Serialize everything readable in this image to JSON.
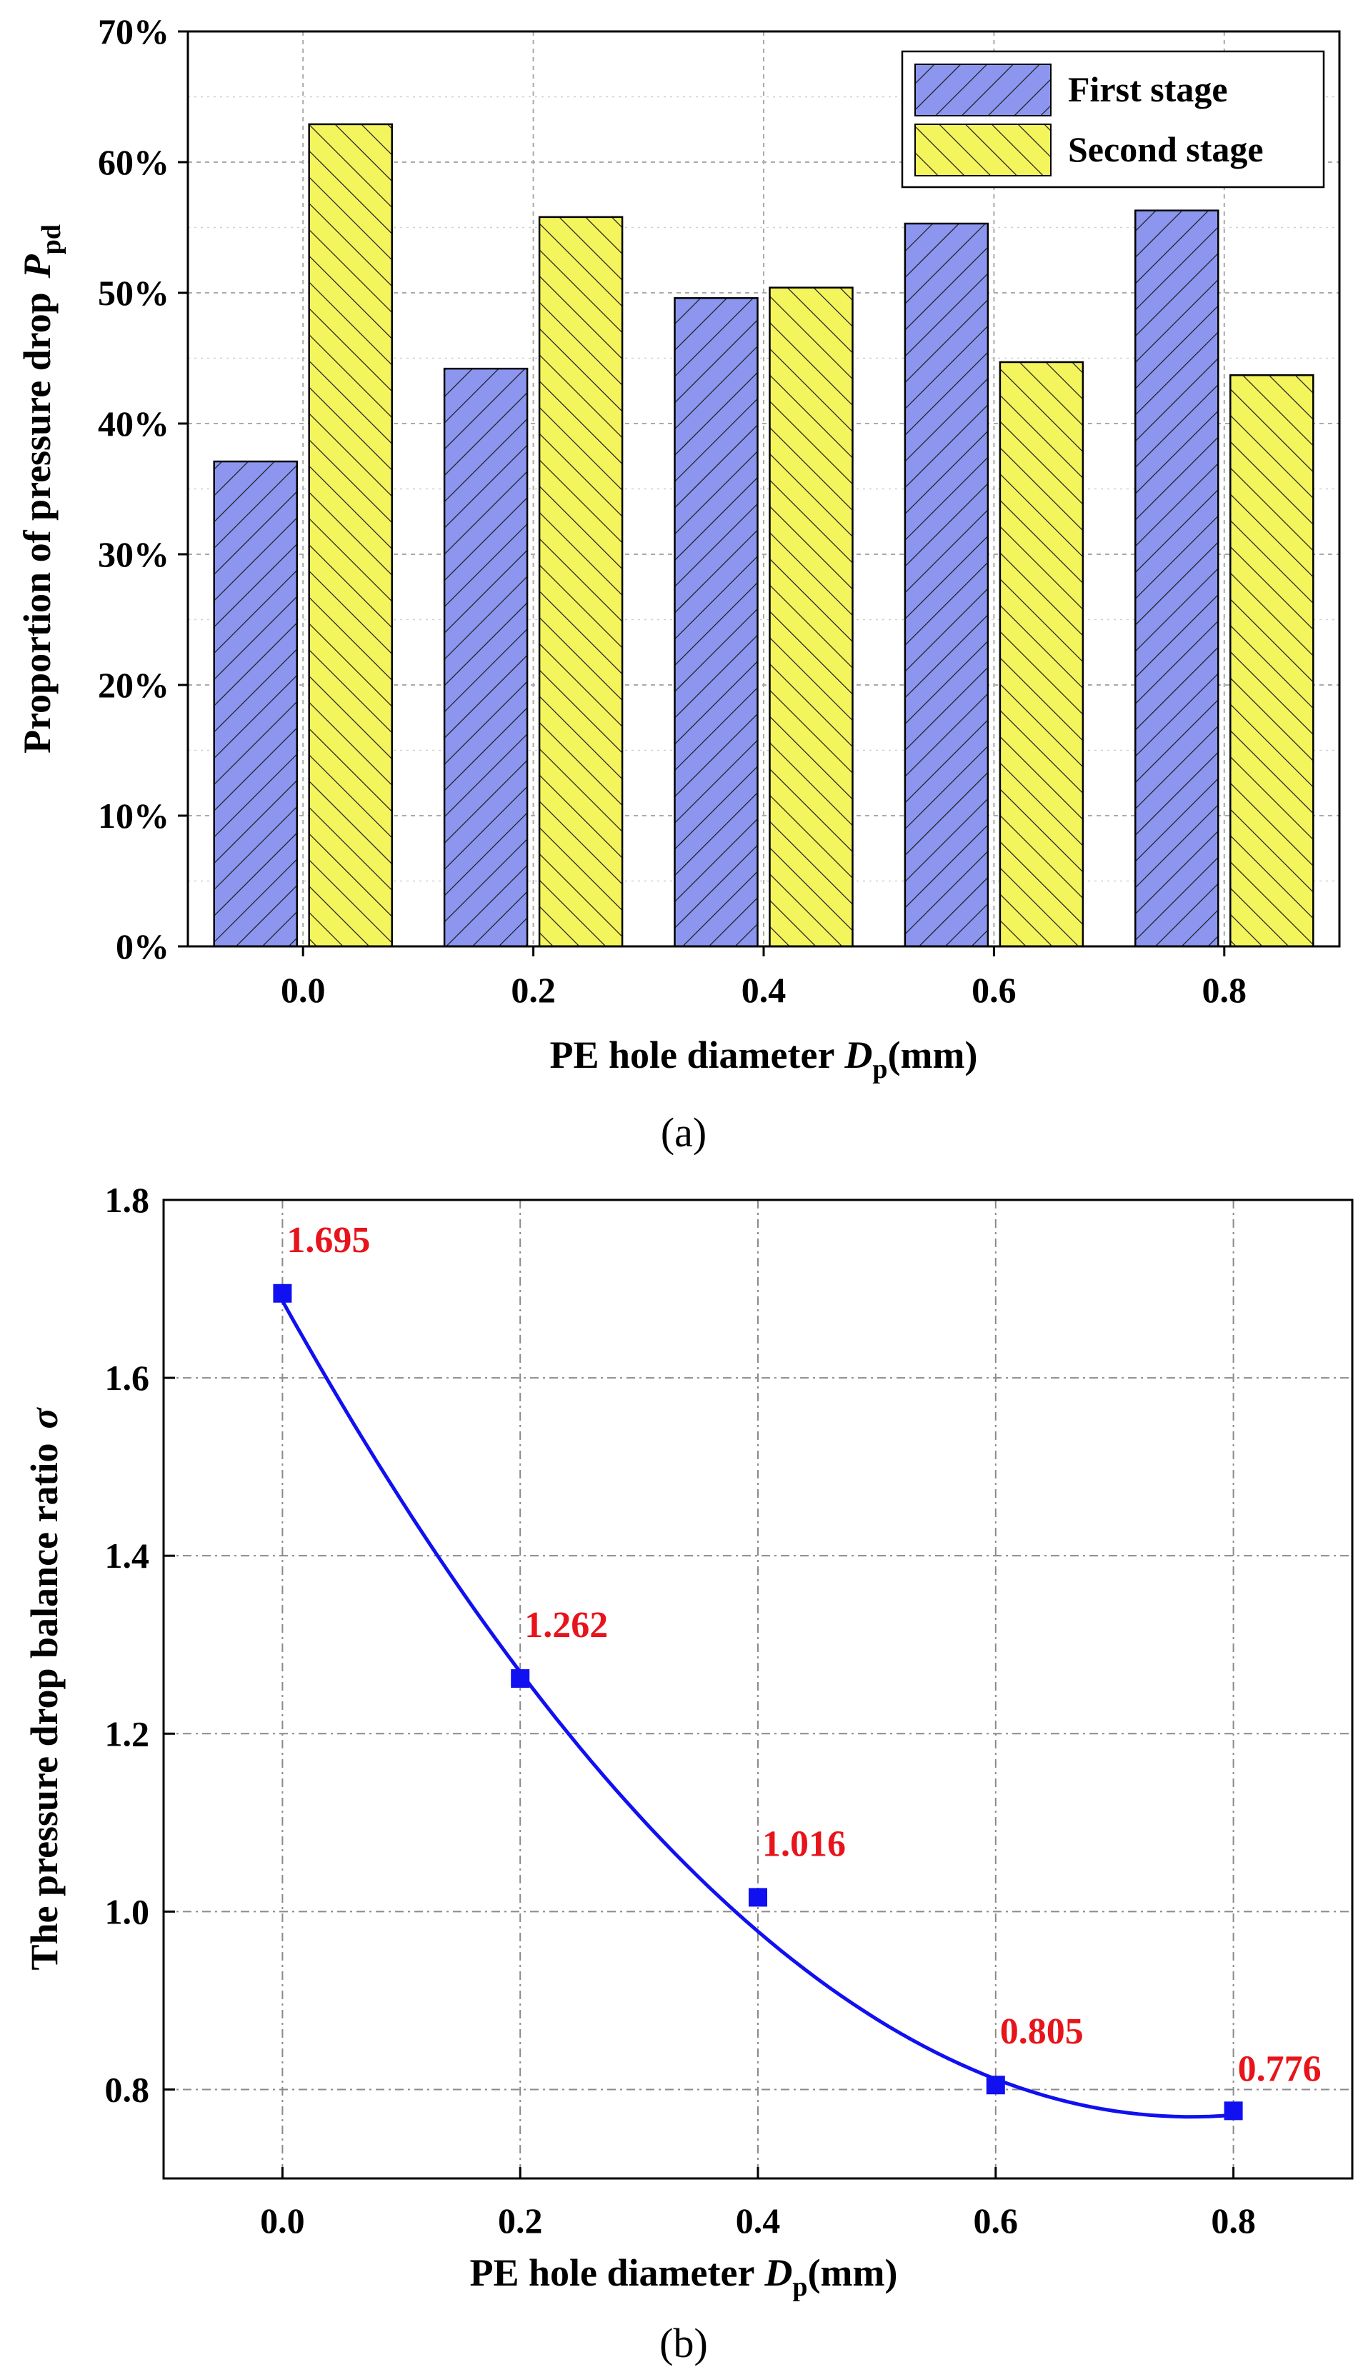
{
  "chart_data": [
    {
      "type": "bar",
      "caption": "(a)",
      "xlabel": "PE hole diameter",
      "xlabel_symbol": "D",
      "xlabel_sub": "p",
      "xlabel_unit": "(mm)",
      "ylabel": "Proportion of pressure drop",
      "ylabel_symbol": "P",
      "ylabel_sub": "pd",
      "categories": [
        "0.0",
        "0.2",
        "0.4",
        "0.6",
        "0.8"
      ],
      "ylim": [
        0,
        70
      ],
      "yticks": [
        0,
        10,
        20,
        30,
        40,
        50,
        60,
        70
      ],
      "ytick_labels": [
        "0%",
        "10%",
        "20%",
        "30%",
        "40%",
        "50%",
        "60%",
        "70%"
      ],
      "grid": true,
      "legend_position": "top-right",
      "series": [
        {
          "name": "First stage",
          "color": "#8c96ef",
          "hatch": "forward",
          "values": [
            37.1,
            44.2,
            49.6,
            55.3,
            56.3
          ]
        },
        {
          "name": "Second stage",
          "color": "#f4f55d",
          "hatch": "back",
          "values": [
            62.9,
            55.8,
            50.4,
            44.7,
            43.7
          ]
        }
      ]
    },
    {
      "type": "line",
      "caption": "(b)",
      "xlabel": "PE hole diameter",
      "xlabel_symbol": "D",
      "xlabel_sub": "p",
      "xlabel_unit": "(mm)",
      "ylabel": "The pressure drop balance ratio",
      "ylabel_symbol": "σ",
      "xlim": [
        -0.1,
        0.9
      ],
      "ylim": [
        0.7,
        1.8
      ],
      "xticks": [
        0.0,
        0.2,
        0.4,
        0.6,
        0.8
      ],
      "xtick_labels": [
        "0.0",
        "0.2",
        "0.4",
        "0.6",
        "0.8"
      ],
      "yticks": [
        0.8,
        1.0,
        1.2,
        1.4,
        1.6,
        1.8
      ],
      "ytick_labels": [
        "0.8",
        "1.0",
        "1.2",
        "1.4",
        "1.6",
        "1.8"
      ],
      "grid": true,
      "series_color": "#1010f0",
      "label_color": "#e8141b",
      "x": [
        0.0,
        0.2,
        0.4,
        0.6,
        0.8
      ],
      "y": [
        1.695,
        1.262,
        1.016,
        0.805,
        0.776
      ],
      "point_labels": [
        "1.695",
        "1.262",
        "1.016",
        "0.805",
        "0.776"
      ],
      "fit_curve": {
        "kind": "polynomial",
        "description": "smooth fitted curve",
        "a": 1.6865,
        "b": -2.4,
        "c": 1.57
      }
    }
  ]
}
